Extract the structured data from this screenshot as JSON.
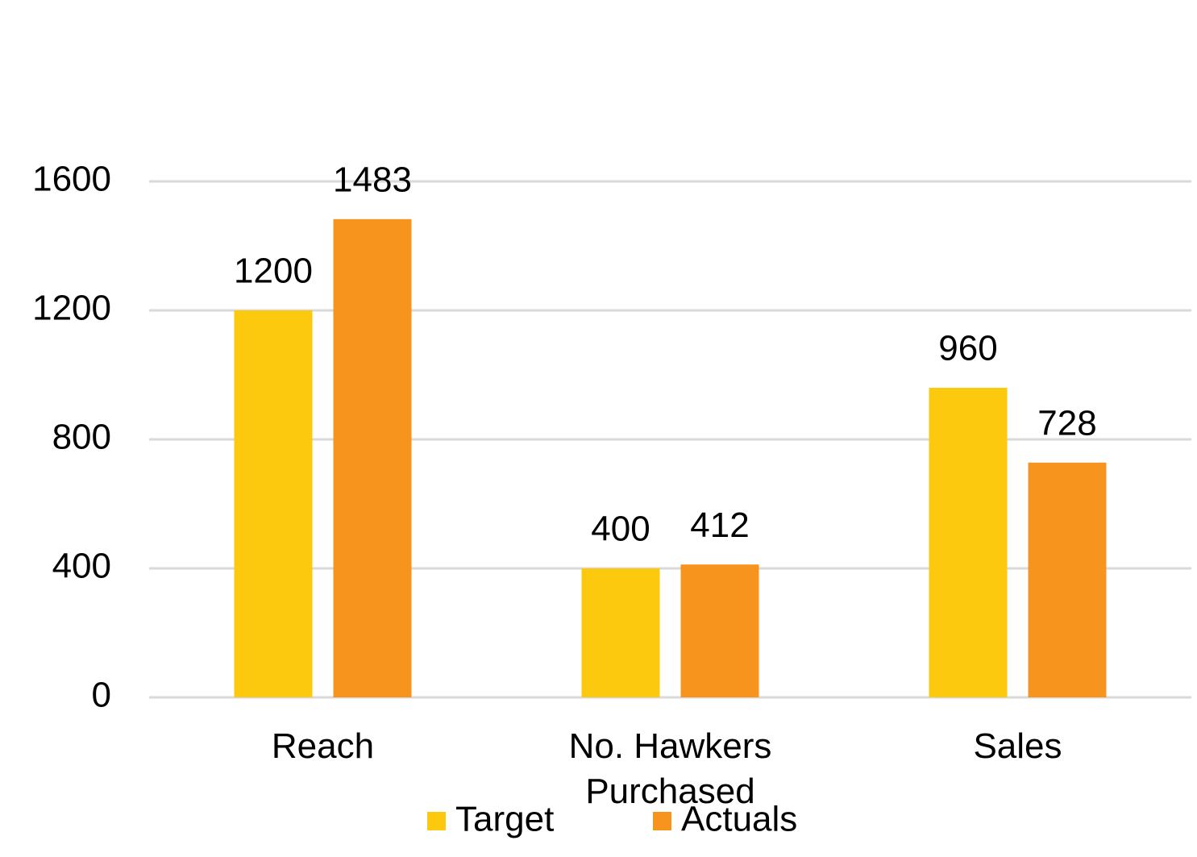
{
  "chart_data": {
    "type": "bar",
    "categories": [
      "Reach",
      "No. Hawkers Purchased",
      "Sales"
    ],
    "series": [
      {
        "name": "Target",
        "color": "#fdc90f",
        "values": [
          1200,
          400,
          960
        ]
      },
      {
        "name": "Actuals",
        "color": "#f7941e",
        "values": [
          1483,
          412,
          728
        ]
      }
    ],
    "ylim": [
      0,
      1600
    ],
    "yticks": [
      0,
      400,
      800,
      1200,
      1600
    ],
    "grid": true,
    "legend": "bottom"
  }
}
